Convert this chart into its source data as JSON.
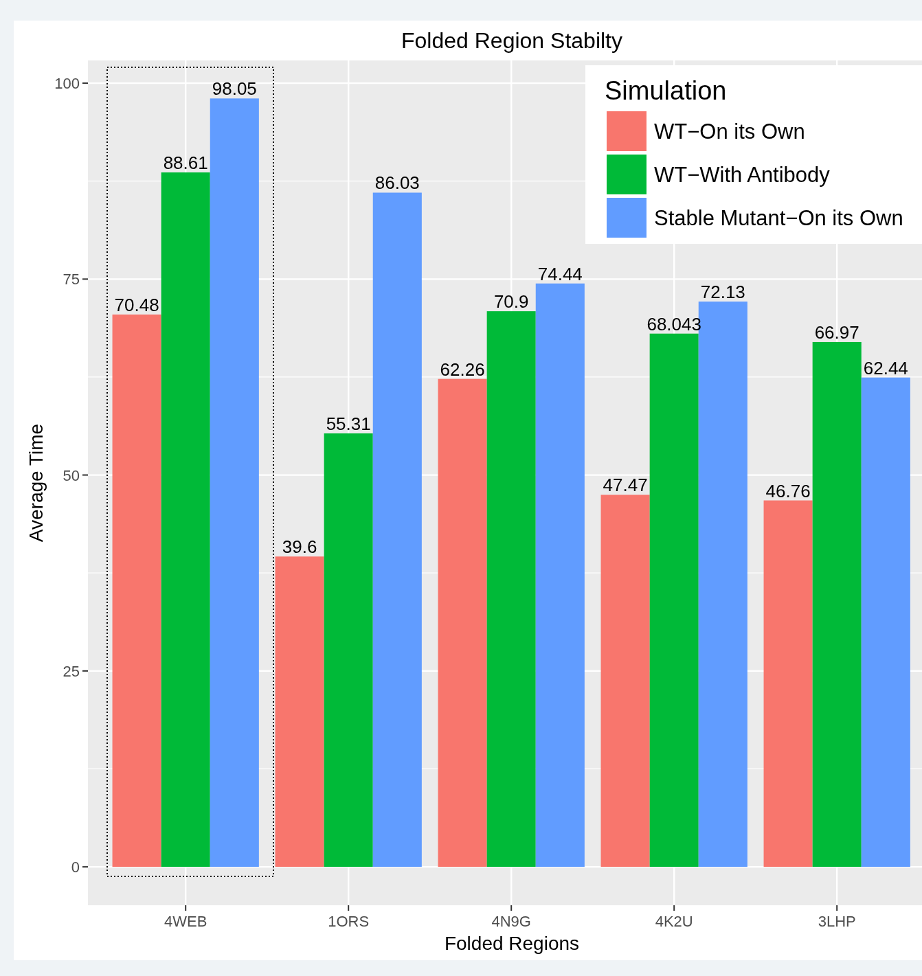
{
  "chart_data": {
    "type": "bar",
    "title": "Folded Region Stabilty",
    "xlabel": "Folded Regions",
    "ylabel": "Average Time",
    "legend_title": "Simulation",
    "categories": [
      "4WEB",
      "1ORS",
      "4N9G",
      "4K2U",
      "3LHP"
    ],
    "series": [
      {
        "name": "WT−On its Own",
        "color": "#f8766d",
        "values": [
          70.48,
          39.6,
          62.26,
          47.47,
          46.76
        ]
      },
      {
        "name": "WT−With Antibody",
        "color": "#00ba38",
        "values": [
          88.61,
          55.31,
          70.9,
          68.043,
          66.97
        ]
      },
      {
        "name": "Stable Mutant−On its Own",
        "color": "#619cff",
        "values": [
          98.05,
          86.03,
          74.44,
          72.13,
          62.44
        ]
      }
    ],
    "ylim": [
      -4.9,
      102.9
    ],
    "yticks": [
      0,
      25,
      50,
      75,
      100
    ],
    "grid": true,
    "legend": "top right",
    "data_labels": true
  }
}
